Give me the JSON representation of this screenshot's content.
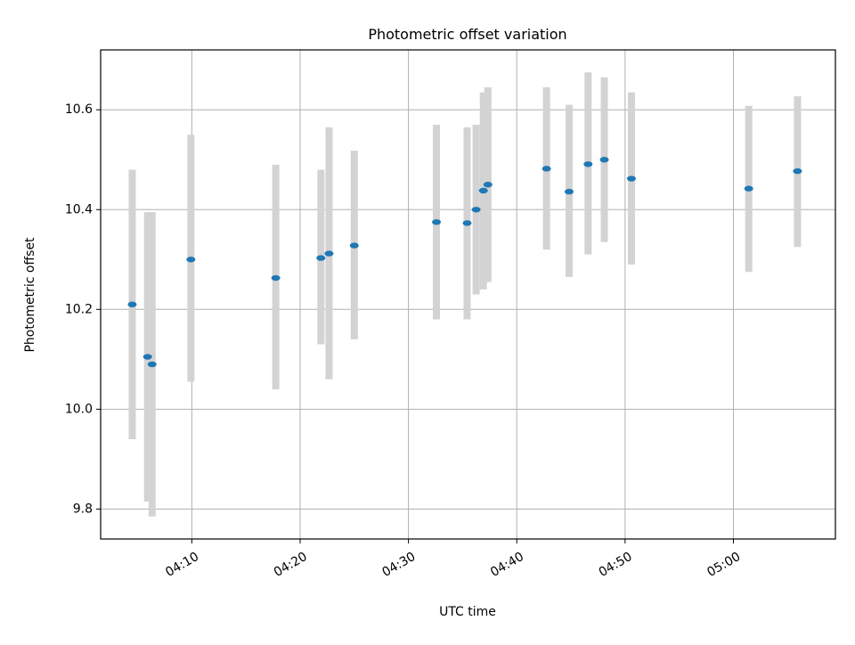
{
  "chart_data": {
    "type": "scatter",
    "title": "Photometric offset variation",
    "xlabel": "UTC time",
    "ylabel": "Photometric offset",
    "x_axis_type": "time",
    "xlim": [
      "04:01:35",
      "05:09:25"
    ],
    "ylim": [
      9.74,
      10.72
    ],
    "x_ticks": [
      "04:10",
      "04:20",
      "04:30",
      "04:40",
      "04:50",
      "05:00"
    ],
    "y_ticks": [
      9.8,
      10.0,
      10.2,
      10.4,
      10.6
    ],
    "grid": true,
    "colors": {
      "marker": "#1f77b4",
      "errorbar": "#d3d3d3",
      "grid": "#b0b0b0"
    },
    "points": [
      {
        "x": "04:04:30",
        "y": 10.21,
        "y_low": 9.94,
        "y_high": 10.48
      },
      {
        "x": "04:05:55",
        "y": 10.105,
        "y_low": 9.815,
        "y_high": 10.395
      },
      {
        "x": "04:06:20",
        "y": 10.09,
        "y_low": 9.785,
        "y_high": 10.395
      },
      {
        "x": "04:09:55",
        "y": 10.3,
        "y_low": 10.055,
        "y_high": 10.55
      },
      {
        "x": "04:17:45",
        "y": 10.263,
        "y_low": 10.04,
        "y_high": 10.49
      },
      {
        "x": "04:21:55",
        "y": 10.303,
        "y_low": 10.13,
        "y_high": 10.48
      },
      {
        "x": "04:22:40",
        "y": 10.312,
        "y_low": 10.06,
        "y_high": 10.565
      },
      {
        "x": "04:25:00",
        "y": 10.328,
        "y_low": 10.14,
        "y_high": 10.518
      },
      {
        "x": "04:32:35",
        "y": 10.375,
        "y_low": 10.18,
        "y_high": 10.57
      },
      {
        "x": "04:35:25",
        "y": 10.373,
        "y_low": 10.18,
        "y_high": 10.565
      },
      {
        "x": "04:36:15",
        "y": 10.4,
        "y_low": 10.23,
        "y_high": 10.57
      },
      {
        "x": "04:36:55",
        "y": 10.438,
        "y_low": 10.24,
        "y_high": 10.635
      },
      {
        "x": "04:37:20",
        "y": 10.45,
        "y_low": 10.255,
        "y_high": 10.645
      },
      {
        "x": "04:42:45",
        "y": 10.482,
        "y_low": 10.32,
        "y_high": 10.645
      },
      {
        "x": "04:44:50",
        "y": 10.436,
        "y_low": 10.265,
        "y_high": 10.61
      },
      {
        "x": "04:46:35",
        "y": 10.491,
        "y_low": 10.31,
        "y_high": 10.675
      },
      {
        "x": "04:48:05",
        "y": 10.5,
        "y_low": 10.335,
        "y_high": 10.665
      },
      {
        "x": "04:50:35",
        "y": 10.462,
        "y_low": 10.29,
        "y_high": 10.635
      },
      {
        "x": "05:01:25",
        "y": 10.442,
        "y_low": 10.275,
        "y_high": 10.608
      },
      {
        "x": "05:05:55",
        "y": 10.477,
        "y_low": 10.325,
        "y_high": 10.627
      }
    ]
  }
}
